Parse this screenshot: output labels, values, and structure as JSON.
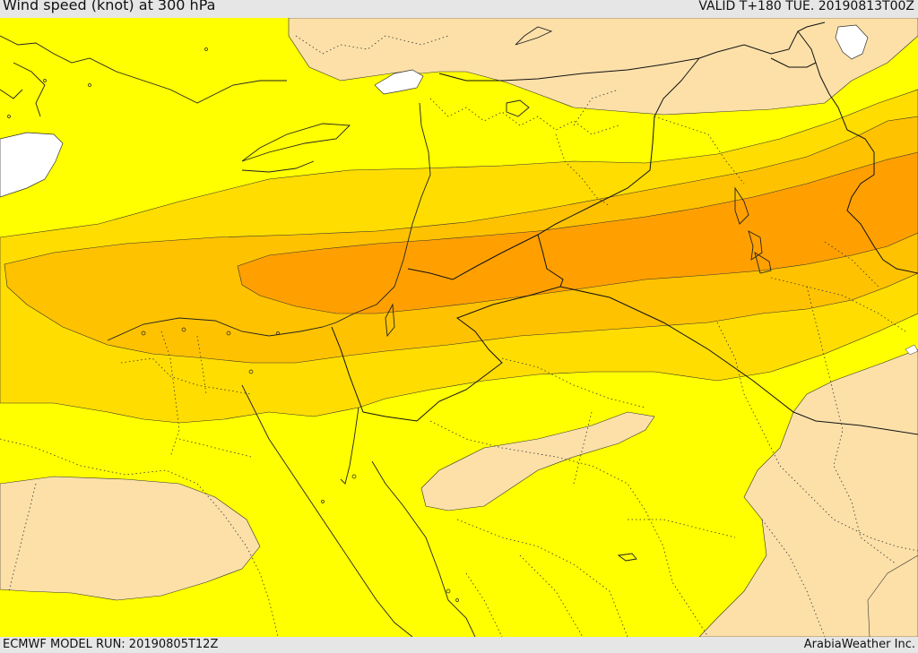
{
  "header": {
    "title": "Wind speed (knot) at 300 hPa",
    "valid_time": "VALID T+180 TUE. 20190813T00Z"
  },
  "footer": {
    "model_run": "ECMWF MODEL RUN: 20190805T12Z",
    "credit": "ArabiaWeather Inc."
  },
  "colors": {
    "band_lightest": "#fce0a8",
    "band_yellow": "#ffff00",
    "band_gold": "#ffdd00",
    "band_amber": "#ffc200",
    "band_orange": "#ffa000",
    "water": "#ffffff",
    "frame": "#e6e6e6"
  }
}
